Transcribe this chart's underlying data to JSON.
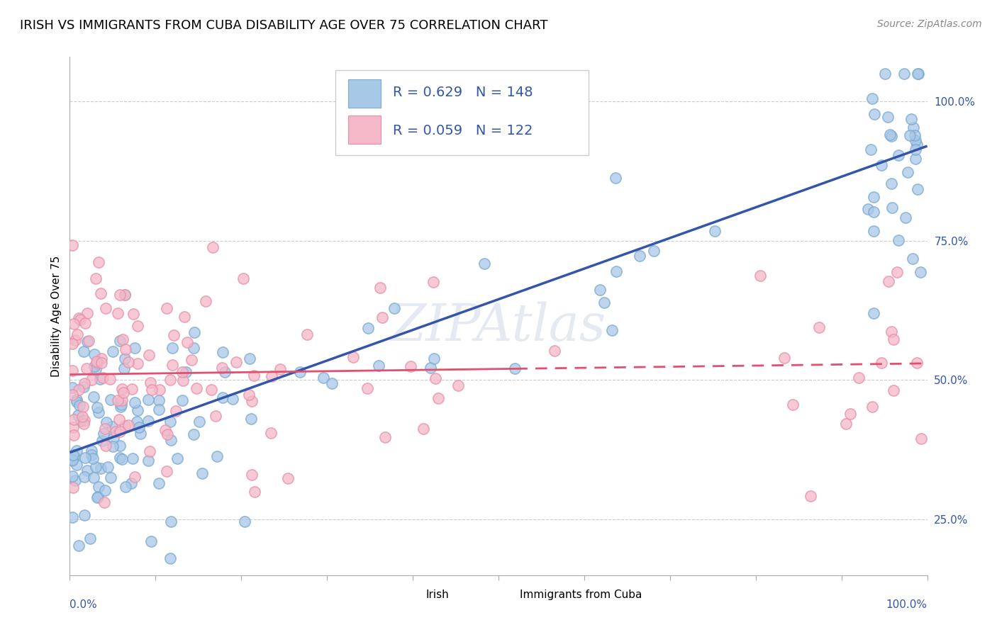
{
  "title": "IRISH VS IMMIGRANTS FROM CUBA DISABILITY AGE OVER 75 CORRELATION CHART",
  "source": "Source: ZipAtlas.com",
  "ylabel": "Disability Age Over 75",
  "xlim": [
    0,
    100
  ],
  "ylim": [
    15,
    108
  ],
  "irish_R": 0.629,
  "irish_N": 148,
  "cuba_R": 0.059,
  "cuba_N": 122,
  "irish_color": "#a8c8e8",
  "cuba_color": "#f4b8c8",
  "irish_edge_color": "#7aaad0",
  "cuba_edge_color": "#e890a8",
  "irish_line_color": "#3355aa",
  "cuba_line_color": "#e05070",
  "background_color": "#ffffff",
  "grid_color": "#cccccc",
  "watermark": "ZIPAtlas",
  "ytick_values": [
    25,
    50,
    75,
    100
  ],
  "title_fontsize": 13,
  "axis_label_fontsize": 11,
  "legend_fontsize": 14,
  "irish_line_start_y": 37,
  "irish_line_end_y": 92,
  "cuba_line_start_y": 51,
  "cuba_line_end_y": 53
}
